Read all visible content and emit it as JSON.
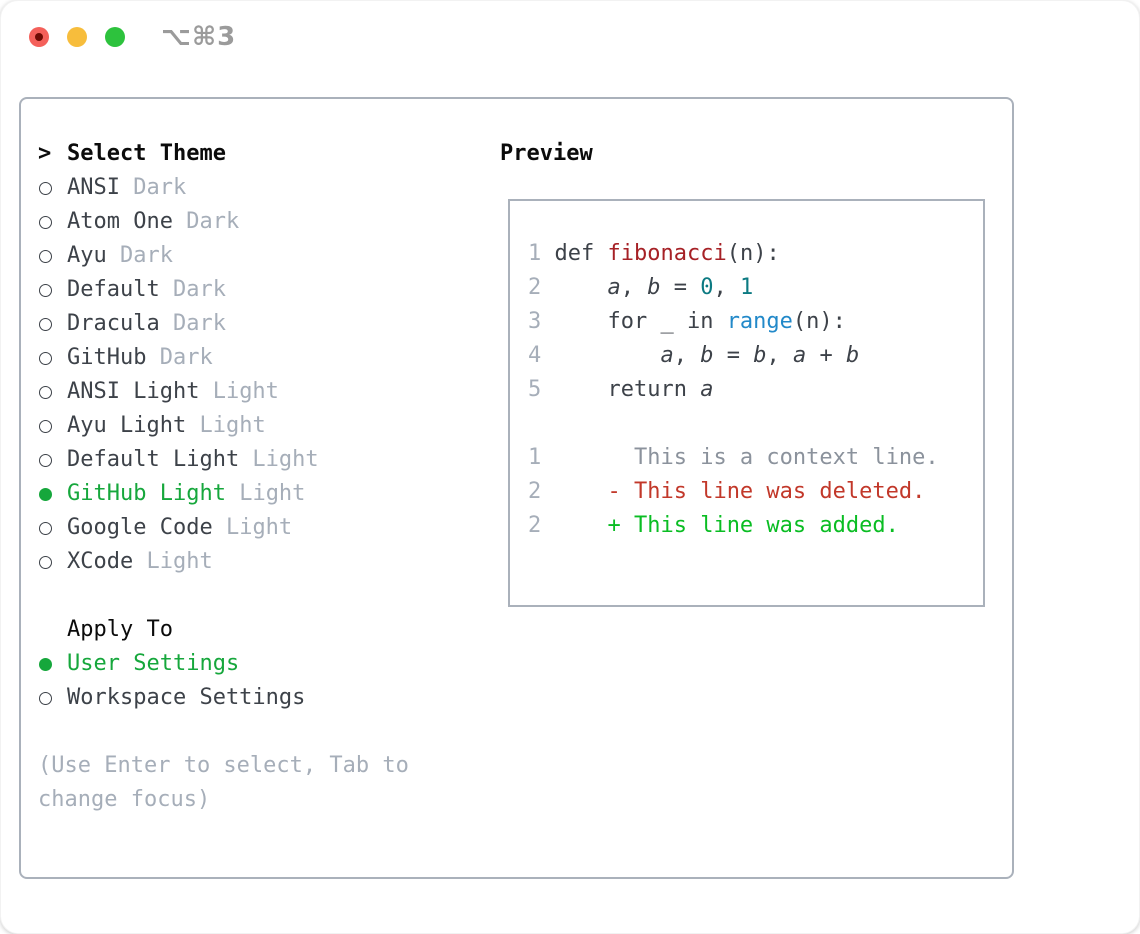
{
  "window": {
    "title": "⌥⌘3"
  },
  "colors": {
    "ink": "#3d4249",
    "muted_gray": "#a6aeb9",
    "border_gray": "#aab1bb",
    "header_black": "#0b0b0b",
    "ui_green": "#16a73c",
    "func_red": "#a62126",
    "number_teal": "#0c7a82",
    "builtin_blue": "#2289c9",
    "context_gray": "#8b929c",
    "deleted_red": "#c2382a",
    "added_green": "#0abd23",
    "titlebar_gray": "#9b9b9b",
    "traffic_red": "#f4605a",
    "traffic_yellow": "#f7bd3c",
    "traffic_green": "#2dc23d"
  },
  "theme_panel": {
    "prompt": ">",
    "header": "Select Theme",
    "items": [
      {
        "name": "ANSI",
        "variant": "Dark",
        "selected": false
      },
      {
        "name": "Atom One",
        "variant": "Dark",
        "selected": false
      },
      {
        "name": "Ayu",
        "variant": "Dark",
        "selected": false
      },
      {
        "name": "Default",
        "variant": "Dark",
        "selected": false
      },
      {
        "name": "Dracula",
        "variant": "Dark",
        "selected": false
      },
      {
        "name": "GitHub",
        "variant": "Dark",
        "selected": false
      },
      {
        "name": "ANSI Light",
        "variant": "Light",
        "selected": false
      },
      {
        "name": "Ayu Light",
        "variant": "Light",
        "selected": false
      },
      {
        "name": "Default Light",
        "variant": "Light",
        "selected": false
      },
      {
        "name": "GitHub Light",
        "variant": "Light",
        "selected": true
      },
      {
        "name": "Google Code",
        "variant": "Light",
        "selected": false
      },
      {
        "name": "XCode",
        "variant": "Light",
        "selected": false
      }
    ],
    "apply_to": {
      "header": "Apply To",
      "options": [
        {
          "label": "User Settings",
          "selected": true
        },
        {
          "label": "Workspace Settings",
          "selected": false
        }
      ]
    },
    "help_text": "(Use Enter to select, Tab to change focus)"
  },
  "preview": {
    "header": "Preview",
    "lines": [
      {
        "name": "code-line-1",
        "segments": [
          [
            "1",
            "ln"
          ],
          [
            " def ",
            "pl"
          ],
          [
            "fibonacci",
            "fn"
          ],
          [
            "(n):",
            "pl"
          ]
        ]
      },
      {
        "name": "code-line-2",
        "segments": [
          [
            "2",
            "ln"
          ],
          [
            "     ",
            "pl"
          ],
          [
            "a",
            "var"
          ],
          [
            ", ",
            "pl"
          ],
          [
            "b",
            "var"
          ],
          [
            " = ",
            "pl"
          ],
          [
            "0",
            "num"
          ],
          [
            ", ",
            "pl"
          ],
          [
            "1",
            "num"
          ]
        ]
      },
      {
        "name": "code-line-3",
        "segments": [
          [
            "3",
            "ln"
          ],
          [
            "     for _ in ",
            "pl"
          ],
          [
            "range",
            "blue"
          ],
          [
            "(n):",
            "pl"
          ]
        ]
      },
      {
        "name": "code-line-4",
        "segments": [
          [
            "4",
            "ln"
          ],
          [
            "         ",
            "pl"
          ],
          [
            "a",
            "var"
          ],
          [
            ", ",
            "pl"
          ],
          [
            "b",
            "var"
          ],
          [
            " = ",
            "pl"
          ],
          [
            "b",
            "var"
          ],
          [
            ", ",
            "pl"
          ],
          [
            "a",
            "var"
          ],
          [
            " + ",
            "pl"
          ],
          [
            "b",
            "var"
          ]
        ]
      },
      {
        "name": "code-line-5",
        "segments": [
          [
            "5",
            "ln"
          ],
          [
            "     return ",
            "pl"
          ],
          [
            "a",
            "var"
          ]
        ]
      },
      {
        "name": "blank-line",
        "segments": []
      },
      {
        "name": "diff-context-line",
        "segments": [
          [
            "1",
            "ln"
          ],
          [
            "       ",
            "pl"
          ],
          [
            "This is a context line.",
            "ctx"
          ]
        ]
      },
      {
        "name": "diff-deleted-line",
        "segments": [
          [
            "2",
            "ln"
          ],
          [
            "     ",
            "pl"
          ],
          [
            "- This line was deleted.",
            "del"
          ]
        ]
      },
      {
        "name": "diff-added-line",
        "segments": [
          [
            "2",
            "ln"
          ],
          [
            "     ",
            "pl"
          ],
          [
            "+ This line was added.",
            "add"
          ]
        ]
      }
    ]
  }
}
